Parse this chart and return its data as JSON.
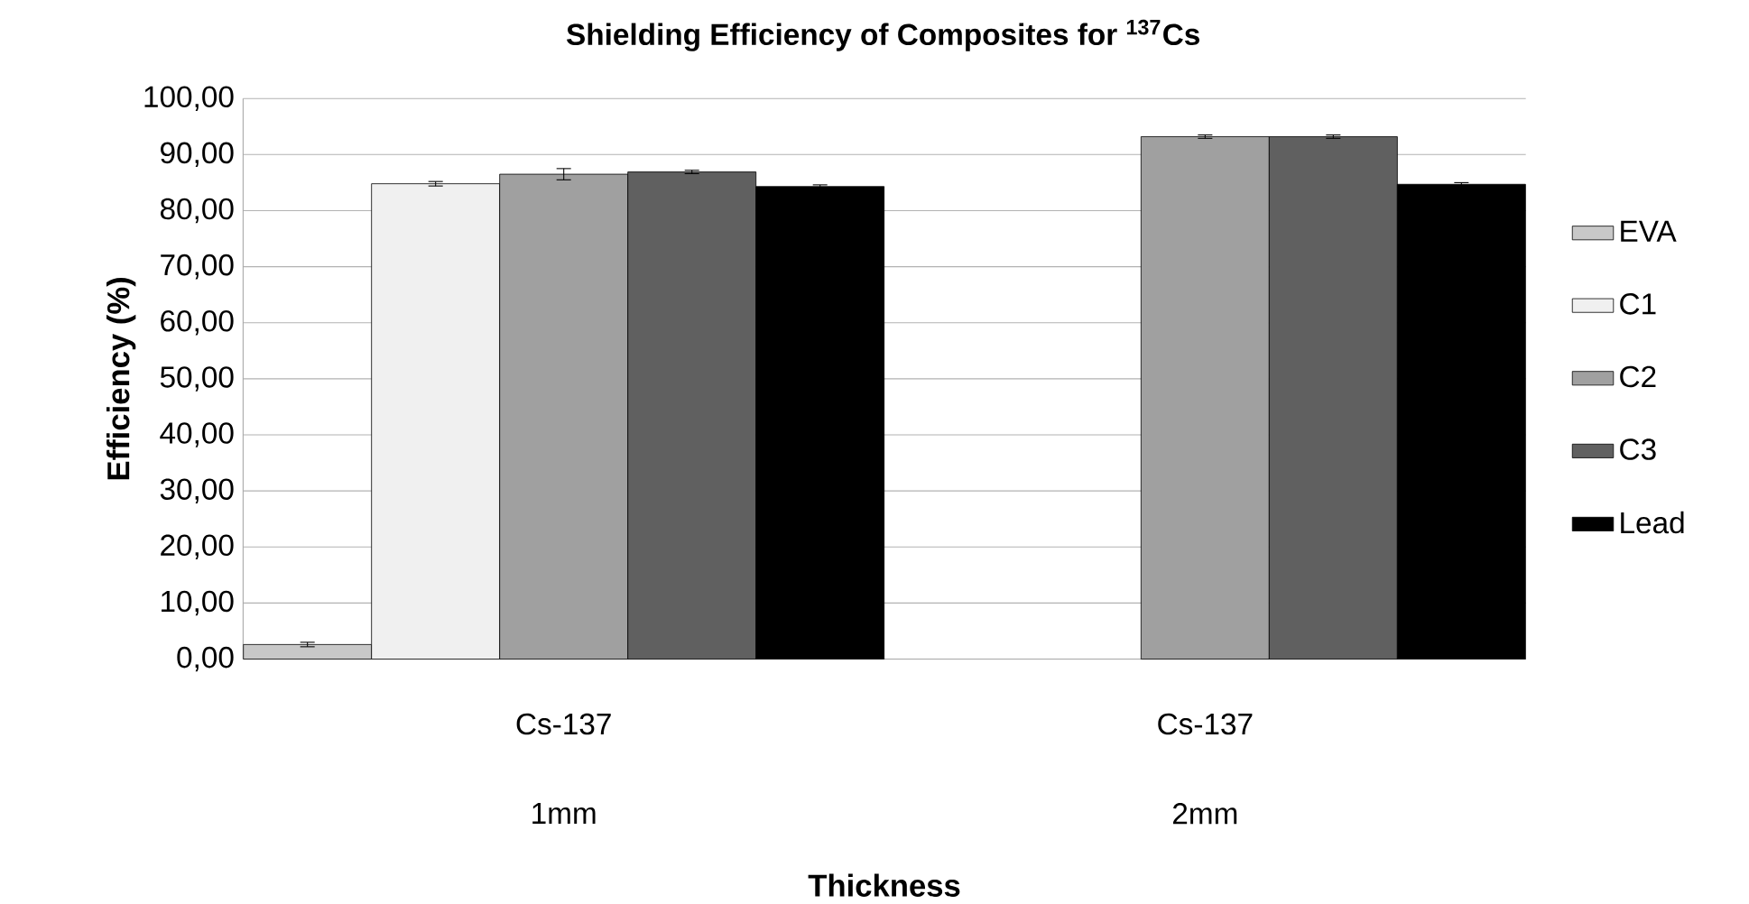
{
  "chart_data": {
    "type": "bar",
    "title": "Shielding Efficiency of Composites for $^{137}$Cs",
    "xlabel": "Thickness",
    "ylabel": "Efficiency (%)",
    "categories": [
      "1mm",
      "2mm"
    ],
    "annotations": [
      "Cs-137",
      "Cs-137"
    ],
    "series": [
      {
        "name": "EVA",
        "color": "#c8c8c8",
        "values": [
          2.6,
          null
        ],
        "errors": [
          0.4,
          null
        ]
      },
      {
        "name": "C1",
        "color": "#f0f0f0",
        "values": [
          84.8,
          null
        ],
        "errors": [
          0.4,
          null
        ]
      },
      {
        "name": "C2",
        "color": "#a0a0a0",
        "values": [
          86.5,
          93.2
        ],
        "errors": [
          1.0,
          0.3
        ]
      },
      {
        "name": "C3",
        "color": "#606060",
        "values": [
          86.9,
          93.2
        ],
        "errors": [
          0.3,
          0.3
        ]
      },
      {
        "name": "Lead",
        "color": "#000000",
        "values": [
          84.3,
          84.7
        ],
        "errors": [
          0.3,
          0.3
        ]
      }
    ],
    "ylim": [
      0,
      100
    ],
    "yticks": [
      {
        "value": 0,
        "label": "0,00"
      },
      {
        "value": 10,
        "label": "10,00"
      },
      {
        "value": 20,
        "label": "20,00"
      },
      {
        "value": 30,
        "label": "30,00"
      },
      {
        "value": 40,
        "label": "40,00"
      },
      {
        "value": 50,
        "label": "50,00"
      },
      {
        "value": 60,
        "label": "60,00"
      },
      {
        "value": 70,
        "label": "70,00"
      },
      {
        "value": 80,
        "label": "80,00"
      },
      {
        "value": 90,
        "label": "90,00"
      },
      {
        "value": 100,
        "label": "100,00"
      }
    ],
    "grid": "y",
    "legend": "right"
  }
}
